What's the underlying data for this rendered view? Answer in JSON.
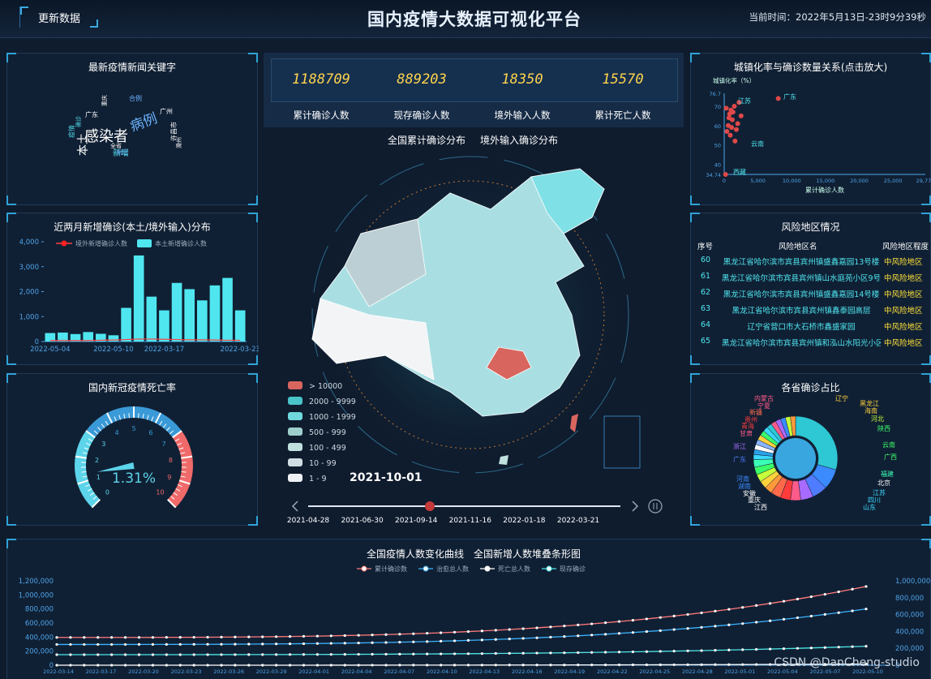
{
  "header": {
    "refresh_label": "更新数据",
    "title": "国内疫情大数据可视化平台",
    "time": "当前时间：2022年5月13日-23时9分39秒"
  },
  "keywords": {
    "title": "最新疫情新闻关键字",
    "words": [
      {
        "text": "感染者",
        "color": "#ffffff",
        "size": 18
      },
      {
        "text": "病例",
        "color": "#6ab3ff",
        "size": 17
      },
      {
        "text": "本土",
        "color": "#ffffff",
        "size": 14
      },
      {
        "text": "新增",
        "color": "#4fd6e6",
        "size": 10
      },
      {
        "text": "广州",
        "color": "#ffffff",
        "size": 8
      },
      {
        "text": "许昌市",
        "color": "#ffffff",
        "size": 8
      },
      {
        "text": "合例",
        "color": "#6ab3ff",
        "size": 8
      },
      {
        "text": "广东",
        "color": "#ffffff",
        "size": 8
      },
      {
        "text": "滑州",
        "color": "#ffffff",
        "size": 7
      },
      {
        "text": "疫情",
        "color": "#4fd6e6",
        "size": 8
      },
      {
        "text": "确诊",
        "color": "#4fd6e6",
        "size": 7
      },
      {
        "text": "全省",
        "color": "#ffffff",
        "size": 7
      },
      {
        "text": "新区",
        "color": "#6ab3ff",
        "size": 7
      },
      {
        "text": "重庆",
        "color": "#ffffff",
        "size": 7
      }
    ]
  },
  "new_cases": {
    "title": "近两月新增确诊(本土/境外输入)分布",
    "legend_import": "境外新增确诊人数",
    "legend_local": "本土新增确诊人数"
  },
  "death_rate": {
    "title": "国内新冠疫情死亡率",
    "value": "1.31%",
    "ticks": [
      "0",
      "1",
      "2",
      "3",
      "4",
      "5",
      "6",
      "7",
      "8",
      "9",
      "10"
    ]
  },
  "stats": [
    {
      "value": "1188709",
      "label": "累计确诊人数"
    },
    {
      "value": "889203",
      "label": "现存确诊人数"
    },
    {
      "value": "18350",
      "label": "境外输入人数"
    },
    {
      "value": "15570",
      "label": "累计死亡人数"
    }
  ],
  "map": {
    "tab1": "全国累计确诊分布",
    "tab2": "境外输入确诊分布",
    "date": "2021-10-01",
    "legend": [
      {
        "label": "> 10000",
        "color": "#d9655f"
      },
      {
        "label": "2000 - 9999",
        "color": "#49c4c8"
      },
      {
        "label": "1000 - 1999",
        "color": "#6fd9dd"
      },
      {
        "label": "500 - 999",
        "color": "#9fcfcd"
      },
      {
        "label": "100 - 499",
        "color": "#bfe0de"
      },
      {
        "label": "10 - 99",
        "color": "#d0dde3"
      },
      {
        "label": "1 - 9",
        "color": "#eef2f5"
      }
    ],
    "timeline": [
      "2021-04-28",
      "2021-06-30",
      "2021-09-14",
      "2021-11-16",
      "2022-01-18",
      "2022-03-21"
    ]
  },
  "urbanization": {
    "title": "城镇化率与确诊数量关系(点击放大)",
    "ylabel": "城镇化率（%）",
    "xlabel": "累计确诊人数",
    "yticks": [
      "76.7",
      "70",
      "60",
      "50",
      "40",
      "34.74"
    ],
    "xticks": [
      "0",
      "5,000",
      "10,000",
      "15,000",
      "20,000",
      "25,000",
      "29,777"
    ],
    "labels": [
      {
        "text": "广东",
        "x": 960,
        "y": 122
      },
      {
        "text": "江苏",
        "x": 904,
        "y": 127
      },
      {
        "text": "云南",
        "x": 920,
        "y": 180
      },
      {
        "text": "西藏",
        "x": 898,
        "y": 215
      }
    ]
  },
  "risk": {
    "title": "风险地区情况",
    "headers": [
      "序号",
      "风险地区名",
      "风险地区程度"
    ],
    "rows": [
      {
        "no": "60",
        "name": "黑龙江省哈尔滨市宾县宾州镇盛鑫嘉园13号楼",
        "level": "中风险地区"
      },
      {
        "no": "61",
        "name": "黑龙江省哈尔滨市宾县宾州镇山水庭苑小区9号楼",
        "level": "中风险地区"
      },
      {
        "no": "62",
        "name": "黑龙江省哈尔滨市宾县宾州镇盛鑫嘉园14号楼",
        "level": "中风险地区"
      },
      {
        "no": "63",
        "name": "黑龙江省哈尔滨市宾县宾州镇鑫泰园高层",
        "level": "中风险地区"
      },
      {
        "no": "64",
        "name": "辽宁省营口市大石桥市鑫盛家园",
        "level": "中风险地区"
      },
      {
        "no": "65",
        "name": "黑龙江省哈尔滨市宾县宾州镇和泓山水阳光小区1期",
        "level": "中风险地区"
      }
    ]
  },
  "province_share": {
    "title": "各省确诊占比",
    "labels": [
      {
        "text": "内蒙古",
        "x": 930,
        "y": 494,
        "color": "#ff5b8a"
      },
      {
        "text": "宁夏",
        "x": 934,
        "y": 503,
        "color": "#ff5b8a"
      },
      {
        "text": "新疆",
        "x": 924,
        "y": 511,
        "color": "#ff6a4a"
      },
      {
        "text": "贵州",
        "x": 918,
        "y": 520,
        "color": "#ff3b3b"
      },
      {
        "text": "青海",
        "x": 914,
        "y": 528,
        "color": "#ff3b3b"
      },
      {
        "text": "甘肃",
        "x": 912,
        "y": 537,
        "color": "#ff5b8a"
      },
      {
        "text": "浙江",
        "x": 904,
        "y": 553,
        "color": "#a86bff"
      },
      {
        "text": "广东",
        "x": 904,
        "y": 569,
        "color": "#4f7bff"
      },
      {
        "text": "辽宁",
        "x": 1030,
        "y": 494,
        "color": "#ffd23b"
      },
      {
        "text": "黑龙江",
        "x": 1060,
        "y": 500,
        "color": "#ffd23b"
      },
      {
        "text": "海南",
        "x": 1066,
        "y": 509,
        "color": "#ffd23b"
      },
      {
        "text": "河北",
        "x": 1074,
        "y": 519,
        "color": "#c6ff3b"
      },
      {
        "text": "陕西",
        "x": 1082,
        "y": 531,
        "color": "#3bff6a"
      },
      {
        "text": "云南",
        "x": 1088,
        "y": 551,
        "color": "#3bff6a"
      },
      {
        "text": "广西",
        "x": 1090,
        "y": 566,
        "color": "#3bff6a"
      },
      {
        "text": "福建",
        "x": 1086,
        "y": 587,
        "color": "#3bffb6"
      },
      {
        "text": "北京",
        "x": 1082,
        "y": 598,
        "color": "#ffffff"
      },
      {
        "text": "江苏",
        "x": 1076,
        "y": 610,
        "color": "#3bd8ff"
      },
      {
        "text": "四川",
        "x": 1070,
        "y": 619,
        "color": "#3bd8ff"
      },
      {
        "text": "山东",
        "x": 1064,
        "y": 628,
        "color": "#3bd8ff"
      },
      {
        "text": "河南",
        "x": 908,
        "y": 593,
        "color": "#3b8bff"
      },
      {
        "text": "湖南",
        "x": 910,
        "y": 602,
        "color": "#3b8bff"
      },
      {
        "text": "安徽",
        "x": 916,
        "y": 611,
        "color": "#ffffff"
      },
      {
        "text": "重庆",
        "x": 922,
        "y": 619,
        "color": "#ffffff"
      },
      {
        "text": "江西",
        "x": 930,
        "y": 628,
        "color": "#ffffff"
      }
    ]
  },
  "trend": {
    "tab1": "全国疫情人数变化曲线",
    "tab2": "全国新增人数堆叠条形图",
    "legend": [
      {
        "name": "累计确诊数",
        "color": "#ff7a7a"
      },
      {
        "name": "治愈总人数",
        "color": "#3bb4ff"
      },
      {
        "name": "死亡总人数",
        "color": "#ffffff"
      },
      {
        "name": "现存确诊",
        "color": "#4ee6e6"
      }
    ],
    "yticks_left": [
      "1,200,000",
      "1,000,000",
      "800,000",
      "600,000",
      "400,000",
      "200,000",
      "0"
    ],
    "yticks_right": [
      "1,000,000",
      "800,000",
      "600,000",
      "400,000",
      "200,000",
      "0"
    ],
    "xticks": [
      "2022-03-14",
      "2022-03-17",
      "2022-03-20",
      "2022-03-23",
      "2022-03-26",
      "2022-03-29",
      "2022-04-01",
      "2022-04-04",
      "2022-04-07",
      "2022-04-10",
      "2022-04-13",
      "2022-04-16",
      "2022-04-19",
      "2022-04-22",
      "2022-04-25",
      "2022-04-28",
      "2022-05-01",
      "2022-05-04",
      "2022-05-07",
      "2022-05-10"
    ]
  },
  "watermark": "CSDN @DanCheng-studio",
  "chart_data": [
    {
      "type": "bar",
      "title": "近两月新增确诊(本土/境外输入)分布",
      "categories": [
        "2022-05-04",
        "",
        "",
        "",
        "",
        "2022-05-10",
        "",
        "",
        "",
        "2022-03-17",
        "",
        "",
        "",
        "",
        "",
        "2022-03-23"
      ],
      "series": [
        {
          "name": "本土新增确诊人数",
          "values": [
            340,
            360,
            300,
            380,
            310,
            250,
            1350,
            3450,
            1800,
            1250,
            2350,
            2100,
            1650,
            2250,
            2550,
            1250
          ]
        },
        {
          "name": "境外新增确诊人数",
          "values": [
            40,
            40,
            40,
            40,
            50,
            60,
            80,
            100,
            100,
            90,
            80,
            70,
            70,
            60,
            50,
            50
          ]
        }
      ],
      "ylim": [
        0,
        4000
      ],
      "yticks": [
        "0",
        "1,000",
        "2,000",
        "3,000",
        "4,000"
      ]
    },
    {
      "type": "scatter",
      "title": "城镇化率与确诊数量关系(点击放大)",
      "xlabel": "累计确诊人数",
      "ylabel": "城镇化率（%）",
      "xlim": [
        0,
        29777
      ],
      "ylim": [
        34.74,
        76.7
      ],
      "points": [
        [
          200,
          34.74
        ],
        [
          8000,
          74
        ],
        [
          2200,
          72
        ],
        [
          1500,
          70
        ],
        [
          1000,
          68
        ],
        [
          800,
          66
        ],
        [
          2500,
          65
        ],
        [
          1200,
          63
        ],
        [
          600,
          60
        ],
        [
          1800,
          58
        ],
        [
          900,
          55
        ],
        [
          1600,
          52
        ],
        [
          1300,
          67
        ],
        [
          300,
          69
        ],
        [
          2000,
          61
        ],
        [
          700,
          64
        ],
        [
          400,
          57
        ],
        [
          1100,
          59
        ]
      ]
    },
    {
      "type": "line",
      "title": "全国疫情人数变化曲线",
      "series": [
        {
          "name": "累计确诊数",
          "start": 395000,
          "end": 1120000
        },
        {
          "name": "治愈总人数",
          "start": 295000,
          "end": 800000
        },
        {
          "name": "死亡总人数",
          "start": 0,
          "end": 16000
        },
        {
          "name": "现存确诊",
          "start": 150000,
          "end": 270000
        }
      ],
      "ylim": [
        0,
        1200000
      ]
    },
    {
      "type": "pie",
      "title": "各省确诊占比",
      "values": [
        30,
        8,
        6,
        5,
        4,
        4,
        4,
        3,
        3,
        3,
        3,
        3,
        2,
        2,
        2,
        2,
        2,
        2,
        2,
        2,
        2,
        2,
        2,
        2,
        2
      ]
    }
  ]
}
